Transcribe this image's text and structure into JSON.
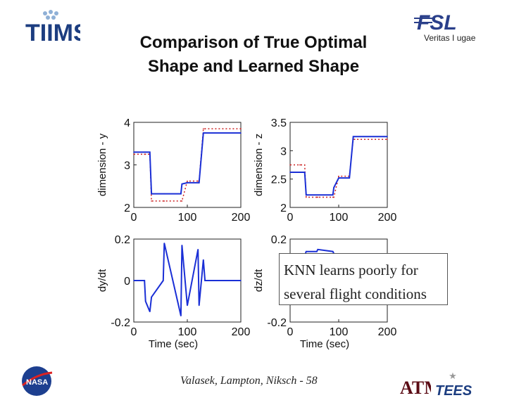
{
  "logos": {
    "tiims": "TIIMS",
    "fsl": "FSL",
    "fsl_motto": "Veritas I ugae",
    "nasa": "NASA",
    "tamu": "ATM",
    "tees": "TEES"
  },
  "title_line1": "Comparison of True Optimal",
  "title_line2": "Shape and Learned Shape",
  "callout": {
    "line1": "KNN learns poorly for",
    "line2": "several flight conditions"
  },
  "footer": "Valasek, Lampton, Niksch - 58",
  "colors": {
    "learned": "#1a2fd6",
    "optimal": "#cc2222"
  },
  "chart_data": [
    {
      "type": "line",
      "panel": "top-left",
      "ylabel": "dimension - y",
      "xlim": [
        0,
        200
      ],
      "ylim": [
        2,
        4
      ],
      "xticks": [
        "0",
        "100",
        "200"
      ],
      "yticks": [
        "2",
        "3",
        "4"
      ],
      "series": [
        {
          "style": "dotted",
          "color": "#cc2222",
          "x": [
            0,
            20,
            22,
            30,
            33,
            55,
            57,
            88,
            90,
            100,
            120,
            122,
            130,
            133,
            200
          ],
          "y": [
            3.25,
            3.25,
            3.25,
            3.25,
            2.15,
            2.15,
            2.15,
            2.15,
            2.15,
            2.62,
            2.62,
            2.62,
            3.85,
            3.85,
            3.85
          ]
        },
        {
          "style": "solid",
          "color": "#1a2fd6",
          "x": [
            0,
            20,
            22,
            30,
            33,
            55,
            57,
            88,
            90,
            100,
            120,
            122,
            130,
            133,
            200
          ],
          "y": [
            3.3,
            3.3,
            3.3,
            3.3,
            2.32,
            2.32,
            2.32,
            2.32,
            2.55,
            2.58,
            2.58,
            2.58,
            3.75,
            3.75,
            3.75
          ]
        }
      ]
    },
    {
      "type": "line",
      "panel": "top-right",
      "ylabel": "dimension - z",
      "xlim": [
        0,
        200
      ],
      "ylim": [
        2,
        3.5
      ],
      "xticks": [
        "0",
        "100",
        "200"
      ],
      "yticks": [
        "2",
        "2.5",
        "3",
        "3.5"
      ],
      "series": [
        {
          "style": "dotted",
          "color": "#cc2222",
          "x": [
            0,
            20,
            22,
            30,
            33,
            55,
            57,
            88,
            90,
            100,
            120,
            122,
            130,
            133,
            200
          ],
          "y": [
            2.75,
            2.75,
            2.75,
            2.75,
            2.18,
            2.18,
            2.18,
            2.18,
            2.18,
            2.55,
            2.55,
            2.55,
            3.2,
            3.2,
            3.2
          ]
        },
        {
          "style": "solid",
          "color": "#1a2fd6",
          "x": [
            0,
            20,
            22,
            30,
            33,
            55,
            57,
            88,
            90,
            100,
            120,
            122,
            130,
            133,
            200
          ],
          "y": [
            2.62,
            2.62,
            2.62,
            2.62,
            2.22,
            2.22,
            2.22,
            2.22,
            2.35,
            2.52,
            2.52,
            2.52,
            3.25,
            3.25,
            3.25
          ]
        }
      ]
    },
    {
      "type": "line",
      "panel": "bottom-left",
      "ylabel": "dy/dt",
      "xlabel": "Time (sec)",
      "xlim": [
        0,
        200
      ],
      "ylim": [
        -0.2,
        0.2
      ],
      "xticks": [
        "0",
        "100",
        "200"
      ],
      "yticks": [
        "-0.2",
        "0",
        "0.2"
      ],
      "series": [
        {
          "style": "solid",
          "color": "#1a2fd6",
          "x": [
            0,
            20,
            22,
            30,
            33,
            55,
            57,
            88,
            90,
            100,
            120,
            122,
            130,
            133,
            200
          ],
          "y": [
            0,
            0,
            -0.1,
            -0.15,
            -0.08,
            0,
            0.18,
            -0.17,
            0.17,
            -0.12,
            0.15,
            -0.12,
            0.1,
            0,
            0
          ]
        }
      ]
    },
    {
      "type": "line",
      "panel": "bottom-right",
      "ylabel": "dz/dt",
      "xlabel": "Time (sec)",
      "xlim": [
        0,
        200
      ],
      "ylim": [
        -0.2,
        0.2
      ],
      "xticks": [
        "0",
        "100",
        "200"
      ],
      "yticks": [
        "-0.2",
        "0.2"
      ],
      "series": [
        {
          "style": "solid",
          "color": "#1a2fd6",
          "x": [
            0,
            20,
            22,
            30,
            33,
            55,
            57,
            88,
            90,
            100,
            120,
            122,
            130,
            133,
            200
          ],
          "y": [
            0,
            0,
            0,
            0.12,
            0.14,
            0.14,
            0.15,
            0.14,
            0.13,
            0.12,
            0.11,
            0.1,
            0,
            0,
            0
          ]
        }
      ]
    }
  ]
}
